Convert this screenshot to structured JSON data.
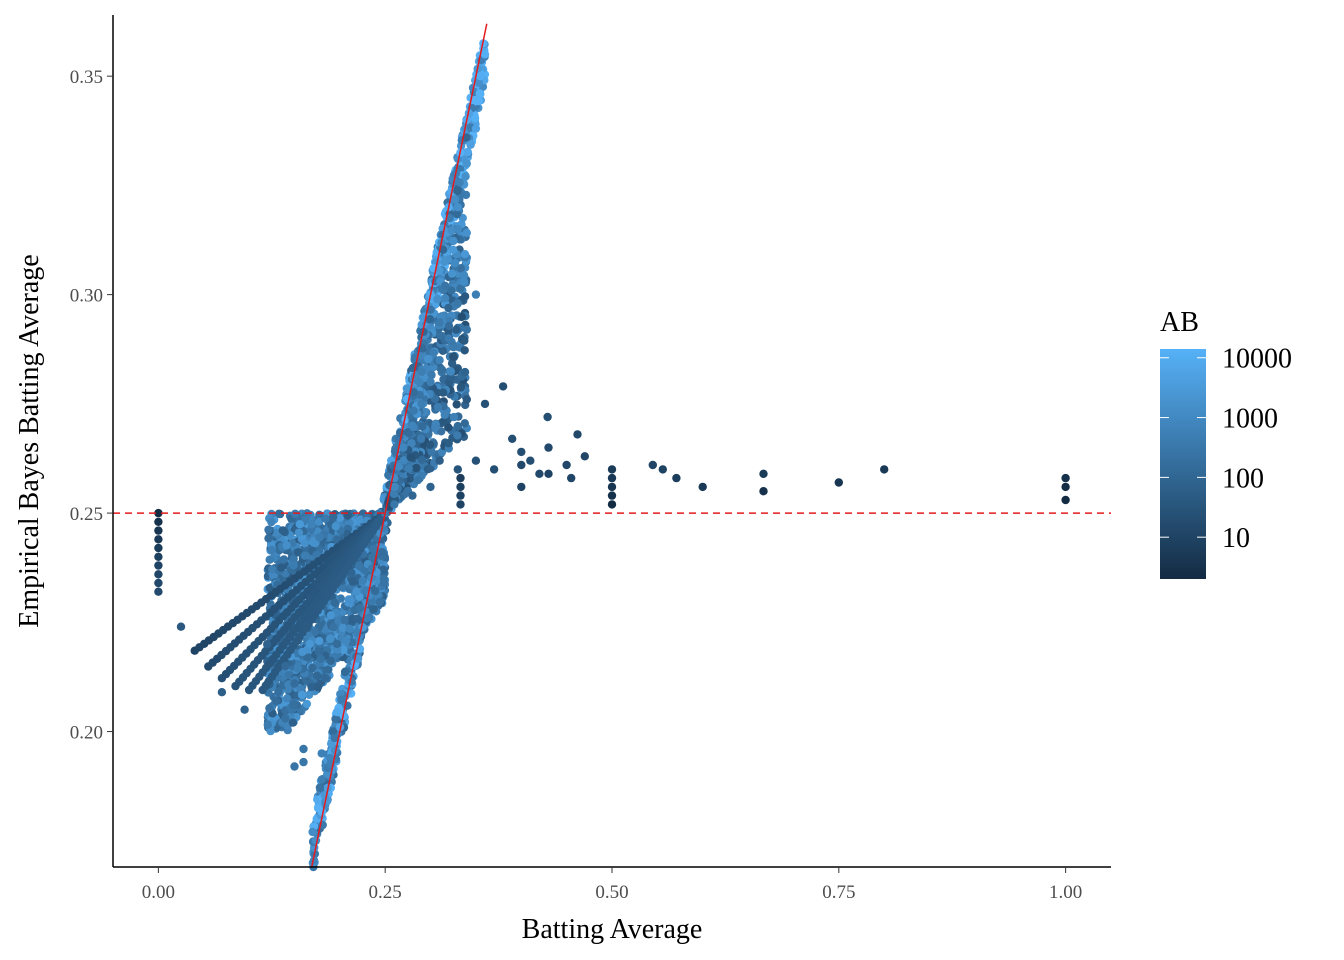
{
  "chart_data": {
    "type": "scatter",
    "title": "",
    "xlabel": "Batting Average",
    "ylabel": "Empirical Bayes Batting Average",
    "xlim": [
      -0.05,
      1.05
    ],
    "ylim": [
      0.169,
      0.364
    ],
    "x_ticks": [
      0.0,
      0.25,
      0.5,
      0.75,
      1.0
    ],
    "x_tick_labels": [
      "0.00",
      "0.25",
      "0.50",
      "0.75",
      "1.00"
    ],
    "y_ticks": [
      0.2,
      0.25,
      0.3,
      0.35
    ],
    "y_tick_labels": [
      "0.20",
      "0.25",
      "0.30",
      "0.35"
    ],
    "grid": false,
    "reference_lines": [
      {
        "kind": "abline",
        "slope": 1,
        "intercept": 0,
        "color": "#e41a1c",
        "style": "solid"
      },
      {
        "kind": "hline",
        "y": 0.25,
        "color": "#e41a1c",
        "style": "dashed"
      }
    ],
    "color_scale": {
      "title": "AB",
      "log": true,
      "low_color": "#132b43",
      "high_color": "#56b1f7",
      "breaks": [
        10,
        100,
        1000,
        10000
      ],
      "break_labels": [
        "10",
        "100",
        "1000",
        "10000"
      ],
      "range": [
        2,
        14000
      ]
    },
    "legend_position": "right",
    "points": [
      {
        "x": 0.0,
        "y": 0.25,
        "ab": 2
      },
      {
        "x": 0.0,
        "y": 0.248,
        "ab": 3
      },
      {
        "x": 0.0,
        "y": 0.246,
        "ab": 4
      },
      {
        "x": 0.0,
        "y": 0.244,
        "ab": 5
      },
      {
        "x": 0.0,
        "y": 0.242,
        "ab": 6
      },
      {
        "x": 0.0,
        "y": 0.24,
        "ab": 8
      },
      {
        "x": 0.0,
        "y": 0.238,
        "ab": 10
      },
      {
        "x": 0.0,
        "y": 0.236,
        "ab": 12
      },
      {
        "x": 0.0,
        "y": 0.234,
        "ab": 14
      },
      {
        "x": 0.0,
        "y": 0.232,
        "ab": 16
      },
      {
        "x": 0.025,
        "y": 0.224,
        "ab": 40
      },
      {
        "x": 0.07,
        "y": 0.209,
        "ab": 60
      },
      {
        "x": 0.095,
        "y": 0.205,
        "ab": 70
      },
      {
        "x": 0.12,
        "y": 0.22,
        "ab": 80
      },
      {
        "x": 0.14,
        "y": 0.215,
        "ab": 120
      },
      {
        "x": 0.15,
        "y": 0.211,
        "ab": 150
      },
      {
        "x": 0.15,
        "y": 0.192,
        "ab": 250
      },
      {
        "x": 0.16,
        "y": 0.193,
        "ab": 300
      },
      {
        "x": 0.16,
        "y": 0.196,
        "ab": 280
      },
      {
        "x": 0.18,
        "y": 0.189,
        "ab": 500
      },
      {
        "x": 0.17,
        "y": 0.177,
        "ab": 1200
      },
      {
        "x": 0.18,
        "y": 0.195,
        "ab": 600
      },
      {
        "x": 0.14,
        "y": 0.203,
        "ab": 200
      },
      {
        "x": 0.13,
        "y": 0.207,
        "ab": 150
      },
      {
        "x": 0.26,
        "y": 0.252,
        "ab": 300
      },
      {
        "x": 0.28,
        "y": 0.254,
        "ab": 100
      },
      {
        "x": 0.3,
        "y": 0.256,
        "ab": 80
      },
      {
        "x": 0.31,
        "y": 0.262,
        "ab": 60
      },
      {
        "x": 0.32,
        "y": 0.266,
        "ab": 50
      },
      {
        "x": 0.33,
        "y": 0.26,
        "ab": 30
      },
      {
        "x": 0.333,
        "y": 0.252,
        "ab": 10
      },
      {
        "x": 0.333,
        "y": 0.254,
        "ab": 9
      },
      {
        "x": 0.333,
        "y": 0.256,
        "ab": 8
      },
      {
        "x": 0.333,
        "y": 0.258,
        "ab": 7
      },
      {
        "x": 0.34,
        "y": 0.276,
        "ab": 40
      },
      {
        "x": 0.35,
        "y": 0.262,
        "ab": 25
      },
      {
        "x": 0.36,
        "y": 0.275,
        "ab": 25
      },
      {
        "x": 0.37,
        "y": 0.26,
        "ab": 20
      },
      {
        "x": 0.38,
        "y": 0.279,
        "ab": 20
      },
      {
        "x": 0.39,
        "y": 0.267,
        "ab": 20
      },
      {
        "x": 0.4,
        "y": 0.264,
        "ab": 20
      },
      {
        "x": 0.4,
        "y": 0.261,
        "ab": 15
      },
      {
        "x": 0.4,
        "y": 0.256,
        "ab": 10
      },
      {
        "x": 0.41,
        "y": 0.262,
        "ab": 20
      },
      {
        "x": 0.42,
        "y": 0.259,
        "ab": 15
      },
      {
        "x": 0.429,
        "y": 0.272,
        "ab": 20
      },
      {
        "x": 0.43,
        "y": 0.265,
        "ab": 15
      },
      {
        "x": 0.43,
        "y": 0.259,
        "ab": 10
      },
      {
        "x": 0.45,
        "y": 0.261,
        "ab": 12
      },
      {
        "x": 0.455,
        "y": 0.258,
        "ab": 11
      },
      {
        "x": 0.462,
        "y": 0.268,
        "ab": 13
      },
      {
        "x": 0.47,
        "y": 0.263,
        "ab": 12
      },
      {
        "x": 0.5,
        "y": 0.26,
        "ab": 6
      },
      {
        "x": 0.5,
        "y": 0.258,
        "ab": 5
      },
      {
        "x": 0.5,
        "y": 0.256,
        "ab": 4
      },
      {
        "x": 0.5,
        "y": 0.254,
        "ab": 3
      },
      {
        "x": 0.5,
        "y": 0.252,
        "ab": 2
      },
      {
        "x": 0.545,
        "y": 0.261,
        "ab": 11
      },
      {
        "x": 0.556,
        "y": 0.26,
        "ab": 9
      },
      {
        "x": 0.571,
        "y": 0.258,
        "ab": 7
      },
      {
        "x": 0.6,
        "y": 0.256,
        "ab": 5
      },
      {
        "x": 0.667,
        "y": 0.259,
        "ab": 6
      },
      {
        "x": 0.667,
        "y": 0.255,
        "ab": 3
      },
      {
        "x": 0.75,
        "y": 0.257,
        "ab": 4
      },
      {
        "x": 0.8,
        "y": 0.26,
        "ab": 5
      },
      {
        "x": 1.0,
        "y": 0.258,
        "ab": 3
      },
      {
        "x": 1.0,
        "y": 0.256,
        "ab": 2
      },
      {
        "x": 1.0,
        "y": 0.253,
        "ab": 1
      },
      {
        "x": 0.3,
        "y": 0.3,
        "ab": 8000
      },
      {
        "x": 0.32,
        "y": 0.32,
        "ab": 9000
      },
      {
        "x": 0.34,
        "y": 0.34,
        "ab": 10000
      },
      {
        "x": 0.36,
        "y": 0.355,
        "ab": 12000
      },
      {
        "x": 0.355,
        "y": 0.35,
        "ab": 11000
      },
      {
        "x": 0.35,
        "y": 0.338,
        "ab": 5000
      },
      {
        "x": 0.34,
        "y": 0.33,
        "ab": 2000
      },
      {
        "x": 0.33,
        "y": 0.32,
        "ab": 1500
      },
      {
        "x": 0.33,
        "y": 0.315,
        "ab": 1000
      },
      {
        "x": 0.35,
        "y": 0.3,
        "ab": 500
      },
      {
        "x": 0.33,
        "y": 0.298,
        "ab": 300
      },
      {
        "x": 0.34,
        "y": 0.292,
        "ab": 250
      },
      {
        "x": 0.32,
        "y": 0.29,
        "ab": 400
      },
      {
        "x": 0.31,
        "y": 0.285,
        "ab": 600
      },
      {
        "x": 0.3,
        "y": 0.28,
        "ab": 500
      },
      {
        "x": 0.29,
        "y": 0.275,
        "ab": 500
      },
      {
        "x": 0.28,
        "y": 0.27,
        "ab": 700
      },
      {
        "x": 0.27,
        "y": 0.265,
        "ab": 900
      },
      {
        "x": 0.26,
        "y": 0.258,
        "ab": 1200
      }
    ],
    "density_regions": [
      {
        "note": "diagonal band of points from low x/low y to high x/high y",
        "x_from": 0.17,
        "x_to": 0.36,
        "spread": 0.012
      },
      {
        "note": "arcs of low-AB players fanning left from the central cluster",
        "x_from": 0.03,
        "x_to": 0.25
      },
      {
        "note": "cluster right of 0.25 above the dashed line",
        "x_from": 0.25,
        "x_to": 0.34
      }
    ]
  }
}
